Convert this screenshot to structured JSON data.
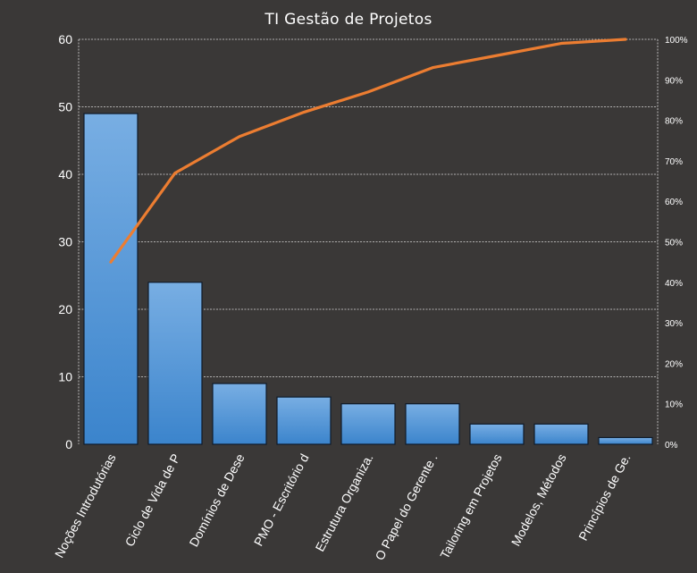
{
  "chart_data": {
    "type": "bar",
    "title": "TI Gestão de Projetos",
    "categories": [
      "Noções Introdutórias",
      "Ciclo de Vida de P",
      "Domínios de Dese",
      "PMO - Escritório d",
      "Estrutura Organiza.",
      "O Papel do Gerente .",
      "Tailoring em Projetos",
      "Modelos, Métodos",
      "Princípios de Ge."
    ],
    "values": [
      49,
      24,
      9,
      7,
      6,
      6,
      3,
      3,
      1
    ],
    "cumulative_percent": [
      45,
      67,
      76,
      82,
      87,
      93,
      96,
      99,
      100
    ],
    "ylim": [
      0,
      60
    ],
    "yticks": [
      "0",
      "10",
      "20",
      "30",
      "40",
      "50",
      "60"
    ],
    "y2lim": [
      0,
      100
    ],
    "y2ticks": [
      "0%",
      "10%",
      "20%",
      "30%",
      "40%",
      "50%",
      "60%",
      "70%",
      "80%",
      "90%",
      "100%"
    ],
    "grid": true,
    "colors": {
      "background": "#3a3837",
      "bar_top": "#78aee3",
      "bar_bottom": "#3b84cc",
      "bar_edge": "#0f1b2a",
      "line": "#ec7d31",
      "grid": "#d9d9d9",
      "text": "#ffffff"
    }
  }
}
